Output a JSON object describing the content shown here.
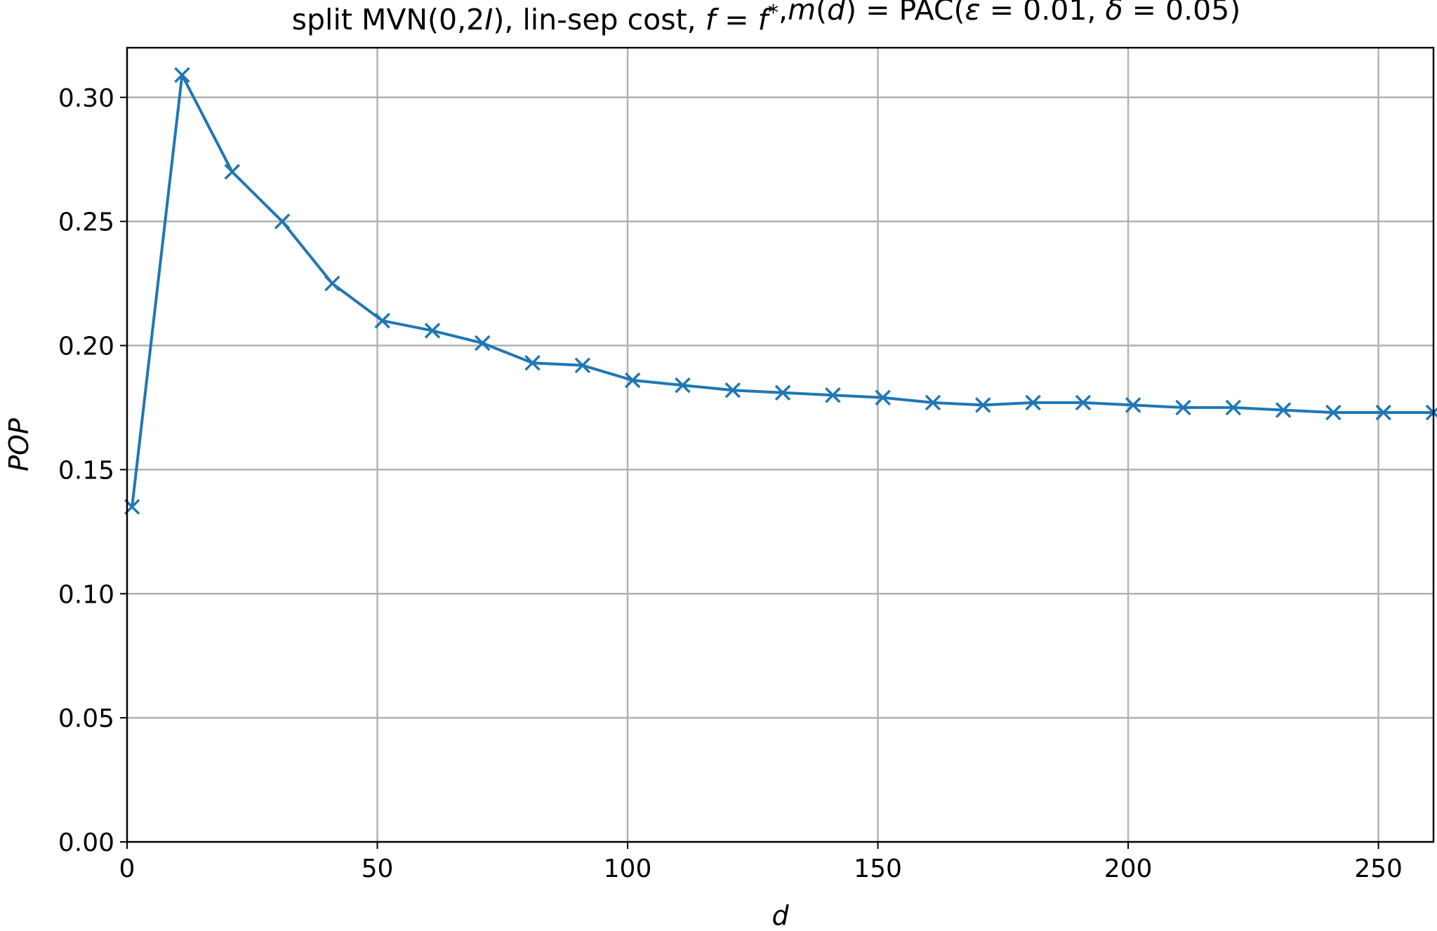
{
  "chart_data": {
    "type": "line",
    "title": "split MVN(0,2I), lin-sep cost, f = f*,m(d) = PAC(ε = 0.01, δ = 0.05)",
    "title_parts": [
      {
        "t": "split MVN(0,2",
        "i": false
      },
      {
        "t": "I",
        "i": true
      },
      {
        "t": "), lin-sep cost, ",
        "i": false
      },
      {
        "t": "f",
        "i": true
      },
      {
        "t": " = ",
        "i": false
      },
      {
        "t": "f",
        "i": true
      },
      {
        "t": "*",
        "i": false,
        "sup": true
      },
      {
        "t": ",",
        "i": false
      },
      {
        "t": "m",
        "i": true
      },
      {
        "t": "(",
        "i": false
      },
      {
        "t": "d",
        "i": true
      },
      {
        "t": ") = PAC(",
        "i": false
      },
      {
        "t": "ε",
        "i": true
      },
      {
        "t": " = 0.01, ",
        "i": false
      },
      {
        "t": "δ",
        "i": true
      },
      {
        "t": " = 0.05)",
        "i": false
      }
    ],
    "xlabel": "d",
    "ylabel": "POP",
    "xlim": [
      0,
      261
    ],
    "ylim": [
      0,
      0.32
    ],
    "xticks": [
      0,
      50,
      100,
      150,
      200,
      250
    ],
    "yticks": [
      "0.00",
      "0.05",
      "0.10",
      "0.15",
      "0.20",
      "0.25",
      "0.30"
    ],
    "grid": true,
    "series": [
      {
        "color": "#1f77b4",
        "marker": "x",
        "x": [
          1,
          11,
          21,
          31,
          41,
          51,
          61,
          71,
          81,
          91,
          101,
          111,
          121,
          131,
          141,
          151,
          161,
          171,
          181,
          191,
          201,
          211,
          221,
          231,
          241,
          251,
          261
        ],
        "y": [
          0.135,
          0.309,
          0.27,
          0.25,
          0.225,
          0.21,
          0.206,
          0.201,
          0.193,
          0.192,
          0.186,
          0.184,
          0.182,
          0.181,
          0.18,
          0.179,
          0.177,
          0.176,
          0.177,
          0.177,
          0.176,
          0.175,
          0.175,
          0.174,
          0.173,
          0.173,
          0.173
        ]
      }
    ]
  }
}
